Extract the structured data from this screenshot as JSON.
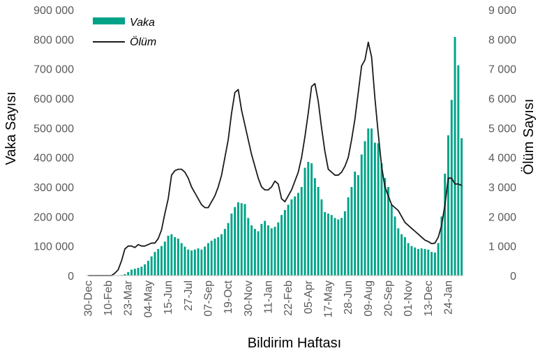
{
  "chart_data": {
    "type": "bar",
    "title": "",
    "xlabel": "Bildirim Haftası",
    "ylabel": "Vaka Sayısı",
    "y2label": "Ölüm Sayısı",
    "ylim": [
      0,
      900000
    ],
    "y2lim": [
      0,
      9000
    ],
    "y_ticks": [
      "0",
      "100 000",
      "200 000",
      "300 000",
      "400 000",
      "500 000",
      "600 000",
      "700 000",
      "800 000",
      "900 000"
    ],
    "y2_ticks": [
      "0",
      "1 000",
      "2 000",
      "3 000",
      "4 000",
      "5 000",
      "6 000",
      "7 000",
      "8 000",
      "9 000"
    ],
    "x_tick_labels": [
      {
        "index": 0,
        "label": "30-Dec"
      },
      {
        "index": 6,
        "label": "10-Feb"
      },
      {
        "index": 12,
        "label": "23-Mar"
      },
      {
        "index": 18,
        "label": "04-May"
      },
      {
        "index": 24,
        "label": "15-Jun"
      },
      {
        "index": 30,
        "label": "27-Jul"
      },
      {
        "index": 36,
        "label": "07-Sep"
      },
      {
        "index": 42,
        "label": "19-Oct"
      },
      {
        "index": 48,
        "label": "30-Nov"
      },
      {
        "index": 54,
        "label": "11-Jan"
      },
      {
        "index": 60,
        "label": "22-Feb"
      },
      {
        "index": 66,
        "label": "05-Apr"
      },
      {
        "index": 72,
        "label": "17-May"
      },
      {
        "index": 78,
        "label": "28-Jun"
      },
      {
        "index": 84,
        "label": "09-Aug"
      },
      {
        "index": 90,
        "label": "20-Sep"
      },
      {
        "index": 96,
        "label": "01-Nov"
      },
      {
        "index": 102,
        "label": "13-Dec"
      },
      {
        "index": 108,
        "label": "24-Jan"
      }
    ],
    "legend": {
      "position": "top-left",
      "entries": [
        "Vaka",
        "Ölüm"
      ]
    },
    "colors": {
      "bar": "#00a388",
      "line": "#1a1a1a",
      "axis": "#bfbfbf"
    },
    "series": [
      {
        "name": "Vaka",
        "type": "bar",
        "axis": "left",
        "values": [
          0,
          0,
          0,
          0,
          0,
          0,
          0,
          0,
          0,
          1000,
          2000,
          5000,
          12000,
          20000,
          23000,
          26000,
          30000,
          38000,
          50000,
          65000,
          80000,
          90000,
          100000,
          115000,
          135000,
          140000,
          130000,
          125000,
          110000,
          98000,
          88000,
          85000,
          88000,
          92000,
          88000,
          98000,
          110000,
          118000,
          125000,
          130000,
          140000,
          158000,
          178000,
          210000,
          232000,
          248000,
          245000,
          242000,
          195000,
          170000,
          158000,
          150000,
          175000,
          185000,
          170000,
          160000,
          165000,
          180000,
          205000,
          222000,
          240000,
          258000,
          268000,
          280000,
          300000,
          365000,
          385000,
          380000,
          330000,
          300000,
          258000,
          215000,
          210000,
          205000,
          195000,
          190000,
          195000,
          218000,
          265000,
          300000,
          352000,
          340000,
          410000,
          455000,
          498000,
          498000,
          450000,
          448000,
          380000,
          330000,
          300000,
          240000,
          200000,
          160000,
          140000,
          130000,
          110000,
          100000,
          95000,
          90000,
          92000,
          90000,
          88000,
          80000,
          78000,
          110000,
          200000,
          345000,
          475000,
          595000,
          808000,
          712000,
          465000
        ]
      },
      {
        "name": "Ölüm",
        "type": "line",
        "axis": "right",
        "values": [
          0,
          0,
          0,
          0,
          0,
          0,
          0,
          0,
          80,
          200,
          500,
          900,
          1000,
          1000,
          950,
          1050,
          1000,
          1000,
          1050,
          1100,
          1100,
          1250,
          1550,
          2100,
          2600,
          3400,
          3550,
          3600,
          3600,
          3500,
          3300,
          3000,
          2800,
          2600,
          2400,
          2300,
          2300,
          2500,
          2700,
          3000,
          3400,
          4000,
          4600,
          5500,
          6200,
          6300,
          5600,
          5100,
          4600,
          4100,
          3700,
          3300,
          3000,
          2900,
          2900,
          3000,
          3200,
          3100,
          2600,
          2500,
          2700,
          2900,
          3200,
          3500,
          4000,
          4700,
          5500,
          6400,
          6500,
          5900,
          5000,
          4200,
          3600,
          3500,
          3400,
          3400,
          3500,
          3700,
          4000,
          4600,
          5300,
          6200,
          7100,
          7300,
          7900,
          7400,
          6000,
          4800,
          3700,
          3000,
          2700,
          2400,
          2300,
          2200,
          2000,
          1800,
          1700,
          1600,
          1500,
          1400,
          1300,
          1200,
          1150,
          1080,
          1100,
          1300,
          1700,
          2400,
          3300,
          3300,
          3100,
          3100,
          3050
        ]
      }
    ]
  }
}
